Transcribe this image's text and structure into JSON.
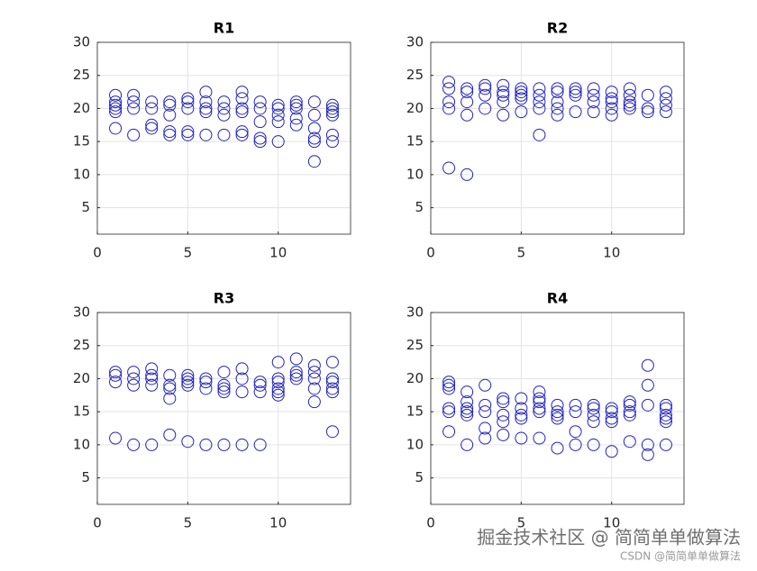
{
  "chart_data": [
    {
      "type": "scatter",
      "title": "R1",
      "color": "#2222c4",
      "xlim": [
        0,
        14
      ],
      "ylim": [
        1,
        30
      ],
      "xticks": [
        0,
        5,
        10
      ],
      "yticks": [
        5,
        10,
        15,
        20,
        25,
        30
      ],
      "grid": true,
      "x": [
        1,
        1,
        1,
        1,
        1,
        1,
        2,
        2,
        2,
        2,
        3,
        3,
        3,
        3,
        4,
        4,
        4,
        4,
        4,
        5,
        5,
        5,
        5,
        5,
        6,
        6,
        6,
        6,
        6,
        7,
        7,
        7,
        7,
        8,
        8,
        8,
        8,
        8,
        8,
        9,
        9,
        9,
        9,
        9,
        10,
        10,
        10,
        10,
        10,
        11,
        11,
        11,
        11,
        11,
        12,
        12,
        12,
        12,
        12,
        12,
        13,
        13,
        13,
        13,
        13,
        13
      ],
      "y": [
        22,
        21,
        20.5,
        20,
        19.5,
        17,
        22,
        21,
        20,
        16,
        21,
        20,
        17.5,
        17,
        21,
        20.5,
        19,
        16.5,
        16,
        21.5,
        21,
        20,
        16.5,
        16,
        22.5,
        21,
        20,
        19.5,
        16,
        21,
        20,
        19,
        16,
        22.5,
        21.5,
        20,
        19.5,
        16.5,
        16,
        21,
        20,
        18,
        15.5,
        15,
        20.5,
        20,
        19,
        18,
        15,
        21,
        20.5,
        20,
        18.5,
        17.5,
        21,
        19,
        17,
        15.5,
        15,
        12,
        20.5,
        20,
        19.5,
        19,
        16,
        15
      ]
    },
    {
      "type": "scatter",
      "title": "R2",
      "color": "#2222c4",
      "xlim": [
        0,
        14
      ],
      "ylim": [
        1,
        30
      ],
      "xticks": [
        0,
        5,
        10
      ],
      "yticks": [
        5,
        10,
        15,
        20,
        25,
        30
      ],
      "grid": true,
      "x": [
        1,
        1,
        1,
        1,
        1,
        2,
        2,
        2,
        2,
        2,
        3,
        3,
        3,
        3,
        4,
        4,
        4,
        4,
        4,
        5,
        5,
        5,
        5,
        5,
        6,
        6,
        6,
        6,
        6,
        7,
        7,
        7,
        7,
        7,
        8,
        8,
        8,
        8,
        9,
        9,
        9,
        9,
        10,
        10,
        10,
        10,
        10,
        11,
        11,
        11,
        11,
        11,
        12,
        12,
        12,
        13,
        13,
        13,
        13
      ],
      "y": [
        24,
        23,
        21,
        20,
        11,
        23,
        22.5,
        21,
        19,
        10,
        23.5,
        23,
        22,
        20,
        23.5,
        22.5,
        22,
        21,
        19,
        23,
        22.5,
        22,
        21.5,
        19.5,
        23,
        22,
        21,
        20,
        16,
        23,
        22.5,
        21,
        20,
        19,
        23,
        22.5,
        22,
        19.5,
        23,
        22,
        21,
        19.5,
        22.5,
        21.5,
        21,
        20,
        19,
        23,
        22,
        21,
        20.5,
        20,
        22,
        20,
        19.5,
        22.5,
        21.5,
        20.5,
        19.5
      ]
    },
    {
      "type": "scatter",
      "title": "R3",
      "color": "#2222c4",
      "xlim": [
        0,
        14
      ],
      "ylim": [
        1,
        30
      ],
      "xticks": [
        0,
        5,
        10
      ],
      "yticks": [
        5,
        10,
        15,
        20,
        25,
        30
      ],
      "grid": true,
      "x": [
        1,
        1,
        1,
        1,
        2,
        2,
        2,
        2,
        3,
        3,
        3,
        3,
        3,
        4,
        4,
        4,
        4,
        4,
        5,
        5,
        5,
        5,
        5,
        6,
        6,
        6,
        6,
        7,
        7,
        7,
        7,
        7,
        8,
        8,
        8,
        8,
        9,
        9,
        9,
        9,
        10,
        10,
        10,
        10,
        10,
        10,
        11,
        11,
        11,
        11,
        12,
        12,
        12,
        12,
        12,
        13,
        13,
        13,
        13,
        13,
        13
      ],
      "y": [
        21,
        20.5,
        19.5,
        11,
        21,
        20,
        19,
        10,
        21.5,
        20.5,
        20,
        19,
        10,
        20.5,
        19,
        18.5,
        17,
        11.5,
        20.5,
        20,
        19.5,
        19,
        10.5,
        20,
        19.5,
        18.5,
        10,
        21,
        19,
        18.5,
        18,
        10,
        21.5,
        20,
        18,
        10,
        19.5,
        19,
        18,
        10,
        22.5,
        20,
        19.5,
        18.5,
        18,
        17.5,
        23,
        21,
        20.5,
        20,
        22,
        21,
        20,
        18.5,
        16.5,
        22.5,
        20,
        19.5,
        18.5,
        18,
        12
      ]
    },
    {
      "type": "scatter",
      "title": "R4",
      "color": "#2222c4",
      "xlim": [
        0,
        14
      ],
      "ylim": [
        1,
        30
      ],
      "xticks": [
        0,
        5,
        10
      ],
      "yticks": [
        5,
        10,
        15,
        20,
        25,
        30
      ],
      "grid": true,
      "x": [
        1,
        1,
        1,
        1,
        1,
        1,
        2,
        2,
        2,
        2,
        2,
        2,
        3,
        3,
        3,
        3,
        3,
        4,
        4,
        4,
        4,
        4,
        5,
        5,
        5,
        5,
        5,
        6,
        6,
        6,
        6,
        6,
        6,
        7,
        7,
        7,
        7,
        7,
        8,
        8,
        8,
        8,
        9,
        9,
        9,
        9,
        9,
        10,
        10,
        10,
        10,
        10,
        11,
        11,
        11,
        11,
        11,
        12,
        12,
        12,
        12,
        12,
        13,
        13,
        13,
        13,
        13,
        13
      ],
      "y": [
        19.5,
        19,
        18.5,
        15.5,
        15,
        12,
        18,
        16.5,
        15.5,
        15,
        14.5,
        10,
        19,
        16,
        15,
        12.5,
        11,
        17,
        16.5,
        14.5,
        13.5,
        11.5,
        17,
        15.5,
        14.5,
        14,
        11,
        18,
        17,
        16.5,
        15.5,
        15,
        11,
        16,
        15,
        14.5,
        14,
        9.5,
        16,
        15,
        12,
        10,
        16,
        15.5,
        14.5,
        13.5,
        10,
        15.5,
        15,
        14,
        13.5,
        9,
        16.5,
        16,
        15,
        14.5,
        10.5,
        22,
        19,
        16,
        10,
        8.5,
        16,
        15.5,
        14.5,
        14,
        13.5,
        10
      ]
    }
  ],
  "watermark": "掘金技术社区 @ 简简单单做算法",
  "watermark_small": "CSDN @简简单单做算法"
}
